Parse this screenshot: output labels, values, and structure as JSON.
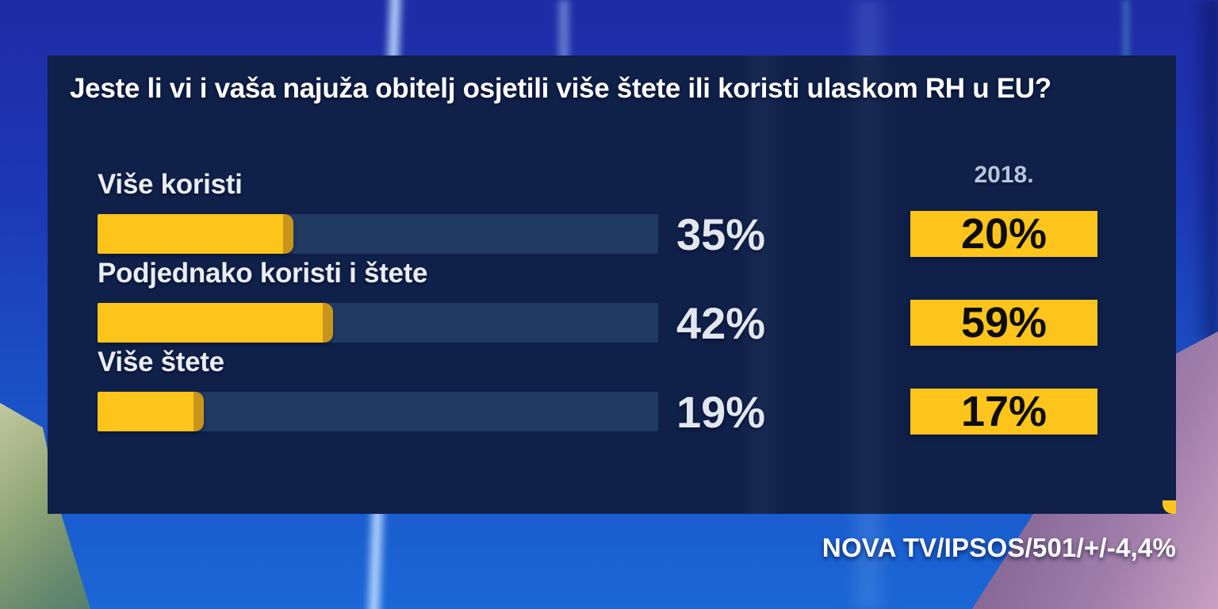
{
  "title": "Jeste li vi i vaša najuža obitelj osjetili više štete ili koristi ulaskom RH u EU?",
  "year_header": "2018.",
  "source": "NOVA TV/IPSOS/501/+/-4,4%",
  "rows": [
    {
      "label": "Više koristi",
      "value": 35,
      "value_label": "35%",
      "year_label": "20%"
    },
    {
      "label": "Podjednako koristi i štete",
      "value": 42,
      "value_label": "42%",
      "year_label": "59%"
    },
    {
      "label": "Više štete",
      "value": 19,
      "value_label": "19%",
      "year_label": "17%"
    }
  ],
  "chart_data": {
    "type": "bar",
    "orientation": "horizontal",
    "title": "Jeste li vi i vaša najuža obitelj osjetili više štete ili koristi ulaskom RH u EU?",
    "categories": [
      "Više koristi",
      "Podjednako koristi i štete",
      "Više štete"
    ],
    "series": [
      {
        "name": "",
        "values": [
          35,
          42,
          19
        ]
      },
      {
        "name": "2018.",
        "values": [
          20,
          59,
          17
        ]
      }
    ],
    "xlim": [
      0,
      100
    ],
    "grid": false,
    "legend_position": "column-right",
    "data_labels": [
      "35%",
      "42%",
      "19%"
    ],
    "comparison_labels": [
      "20%",
      "59%",
      "17%"
    ],
    "source": "NOVA TV/IPSOS/501/+/-4,4%"
  },
  "colors": {
    "accent_yellow": "#fdc41c",
    "bar_cap": "#c8951b",
    "panel_navy": "#0f2049",
    "track_blue": "#203a62",
    "label_text": "#eaedf4",
    "value_text": "#e2e6ef",
    "year_header_text": "#b9c5da",
    "box_text": "#0d0d0d",
    "bg_blue_top": "#1e2ca5",
    "bg_blue_bottom": "#1a67d6",
    "corner_green": "#7e9a70",
    "corner_purple": "#8a6a99"
  }
}
